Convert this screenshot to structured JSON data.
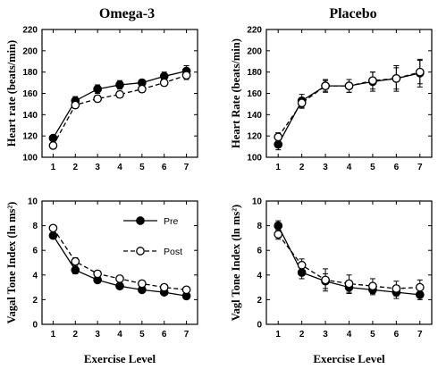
{
  "figure": {
    "column_titles": [
      "Omega-3",
      "Placebo"
    ],
    "x_axis_label": "Exercise Level"
  },
  "legend": {
    "items": [
      {
        "label": "Pre",
        "marker": "filled-circle",
        "line": "solid"
      },
      {
        "label": "Post",
        "marker": "open-circle",
        "line": "dashed"
      }
    ]
  },
  "chart_data": [
    {
      "type": "line",
      "title": "Omega-3",
      "xlabel": "",
      "ylabel": "Heart rate (beats/min)",
      "x": [
        1,
        2,
        3,
        4,
        5,
        6,
        7
      ],
      "xlim": [
        0.5,
        7.5
      ],
      "ylim": [
        100,
        220
      ],
      "yticks": [
        100,
        120,
        140,
        160,
        180,
        200,
        220
      ],
      "series": [
        {
          "name": "Pre",
          "marker": "filled",
          "values": [
            118,
            153,
            164,
            168,
            170,
            176,
            181
          ],
          "errors": [
            2,
            4,
            4,
            4,
            3,
            4,
            5
          ]
        },
        {
          "name": "Post",
          "marker": "open",
          "values": [
            111,
            149,
            155,
            159,
            164,
            170,
            177
          ],
          "errors": [
            2,
            3,
            3,
            3,
            3,
            3,
            4
          ]
        }
      ]
    },
    {
      "type": "line",
      "title": "Placebo",
      "xlabel": "",
      "ylabel": "Heart Rate (beats/min)",
      "x": [
        1,
        2,
        3,
        4,
        5,
        6,
        7
      ],
      "xlim": [
        0.5,
        7.5
      ],
      "ylim": [
        100,
        220
      ],
      "yticks": [
        100,
        120,
        140,
        160,
        180,
        200,
        220
      ],
      "series": [
        {
          "name": "Pre",
          "marker": "filled",
          "values": [
            112,
            153,
            167,
            167,
            171,
            174,
            179
          ],
          "errors": [
            5,
            6,
            6,
            6,
            9,
            12,
            13
          ]
        },
        {
          "name": "Post",
          "marker": "open",
          "values": [
            119,
            151,
            167,
            167,
            172,
            174,
            180
          ],
          "errors": [
            4,
            5,
            5,
            6,
            8,
            10,
            11
          ]
        }
      ]
    },
    {
      "type": "line",
      "title": "",
      "xlabel": "Exercise Level",
      "ylabel": "Vagal Tone Index (ln ms²)",
      "x": [
        1,
        2,
        3,
        4,
        5,
        6,
        7
      ],
      "xlim": [
        0.5,
        7.5
      ],
      "ylim": [
        0,
        10
      ],
      "yticks": [
        0,
        2,
        4,
        6,
        8,
        10
      ],
      "series": [
        {
          "name": "Pre",
          "marker": "filled",
          "values": [
            7.2,
            4.4,
            3.6,
            3.1,
            2.8,
            2.6,
            2.3
          ],
          "errors": [
            0.2,
            0.3,
            0.2,
            0.2,
            0.2,
            0.2,
            0.2
          ]
        },
        {
          "name": "Post",
          "marker": "open",
          "values": [
            7.8,
            5.1,
            4.1,
            3.7,
            3.3,
            3.0,
            2.8
          ],
          "errors": [
            0.2,
            0.3,
            0.2,
            0.2,
            0.2,
            0.2,
            0.2
          ]
        }
      ]
    },
    {
      "type": "line",
      "title": "",
      "xlabel": "Exercise Level",
      "ylabel": "Vagl Tone Index (ln ms²)",
      "x": [
        1,
        2,
        3,
        4,
        5,
        6,
        7
      ],
      "xlim": [
        0.5,
        7.5
      ],
      "ylim": [
        0,
        10
      ],
      "yticks": [
        0,
        2,
        4,
        6,
        8,
        10
      ],
      "series": [
        {
          "name": "Pre",
          "marker": "filled",
          "values": [
            8.0,
            4.2,
            3.5,
            3.0,
            2.8,
            2.6,
            2.4
          ],
          "errors": [
            0.4,
            0.5,
            0.6,
            0.5,
            0.4,
            0.5,
            0.4
          ]
        },
        {
          "name": "Post",
          "marker": "open",
          "values": [
            7.3,
            4.8,
            3.6,
            3.3,
            3.1,
            2.9,
            3.0
          ],
          "errors": [
            0.4,
            0.5,
            0.9,
            0.7,
            0.6,
            0.6,
            0.6
          ]
        }
      ]
    }
  ]
}
